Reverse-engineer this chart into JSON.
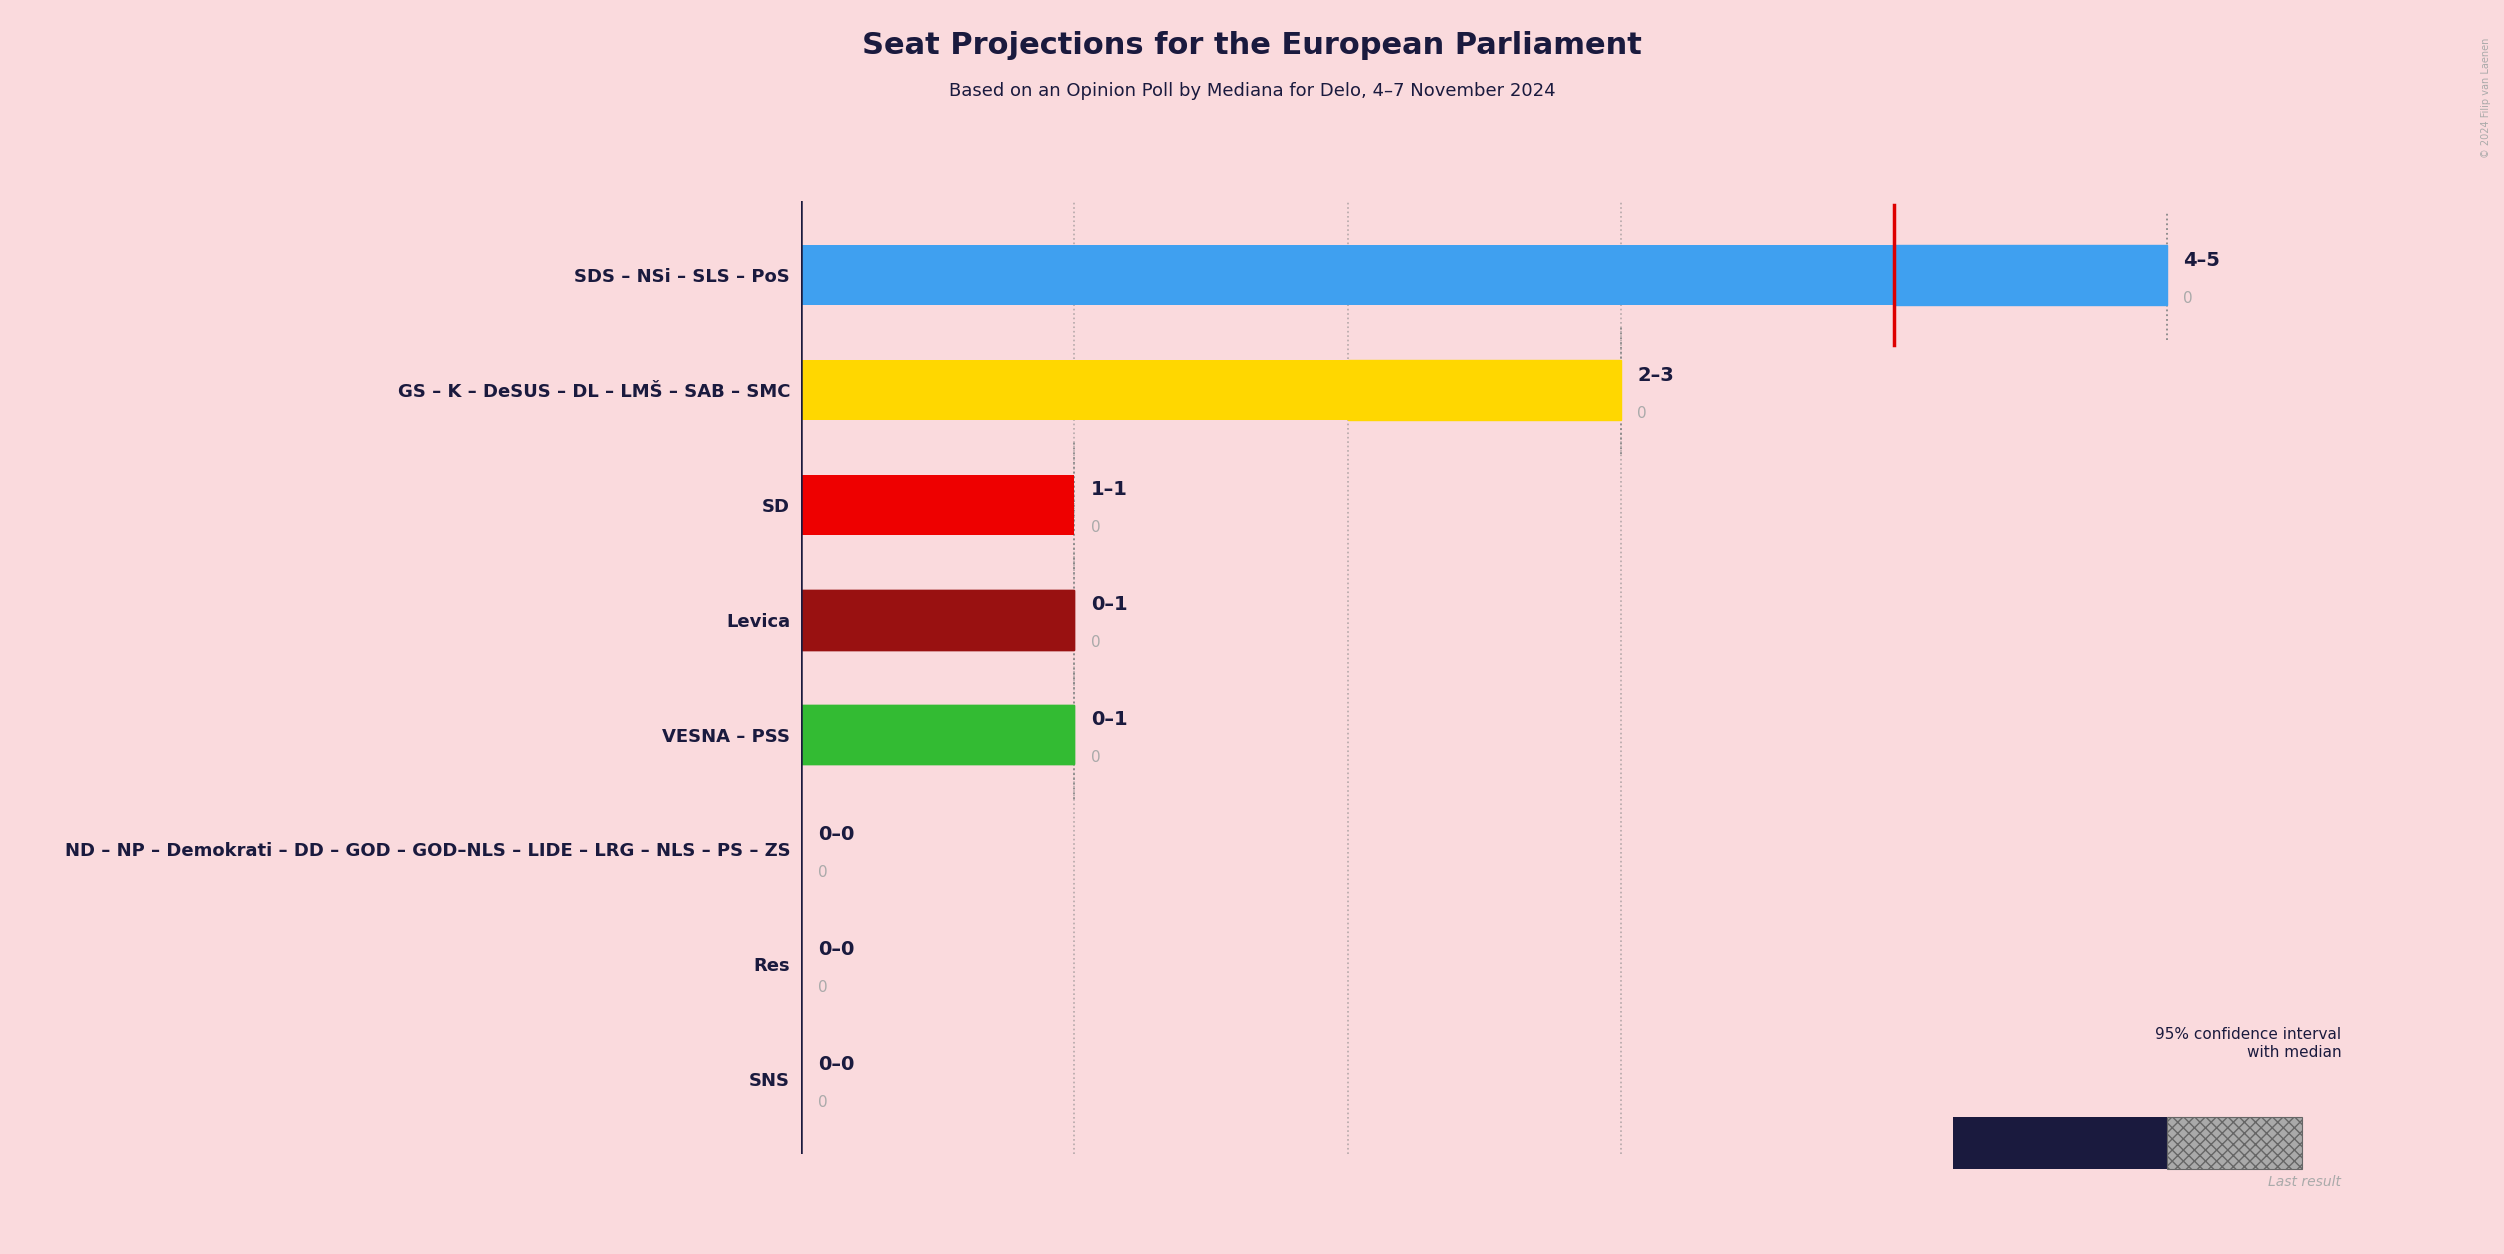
{
  "title": "Seat Projections for the European Parliament",
  "subtitle": "Based on an Opinion Poll by Mediana for Delo, 4–7 November 2024",
  "background_color": "#fadadd",
  "parties": [
    "SDS – NSi – SLS – PoS",
    "GS – K – DeSUS – DL – LMŠ – SAB – SMC",
    "SD",
    "Levica",
    "VESNA – PSS",
    "ND – NP – Demokrati – DD – GOD – GOD–NLS – LIDE – LRG – NLS – PS – ZS",
    "Res",
    "SNS"
  ],
  "median_seats": [
    4,
    2,
    1,
    0,
    0,
    0,
    0,
    0
  ],
  "high_seats": [
    5,
    3,
    1,
    1,
    1,
    0,
    0,
    0
  ],
  "last_result": [
    0,
    0,
    0,
    0,
    0,
    0,
    0,
    0
  ],
  "labels": [
    "4–5",
    "2–3",
    "1–1",
    "0–1",
    "0–1",
    "0–0",
    "0–0",
    "0–0"
  ],
  "bar_colors": [
    "#3fa0f0",
    "#ffd700",
    "#ee0000",
    "#991111",
    "#33bb33",
    null,
    null,
    null
  ],
  "hatch_colors_ext": [
    "#3fa0f0",
    "#ffd700",
    null,
    "#991111",
    "#33bb33",
    null,
    null,
    null
  ],
  "hatch_patterns_ext": [
    "ooo",
    "///",
    null,
    "xxx",
    "///",
    null,
    null,
    null
  ],
  "median_line_color": "#dd0000",
  "dotted_line_color": "#888888",
  "axis_color": "#1a1a3e",
  "xlim_max": 5.5,
  "copyright_text": "© 2024 Filip van Laenen"
}
